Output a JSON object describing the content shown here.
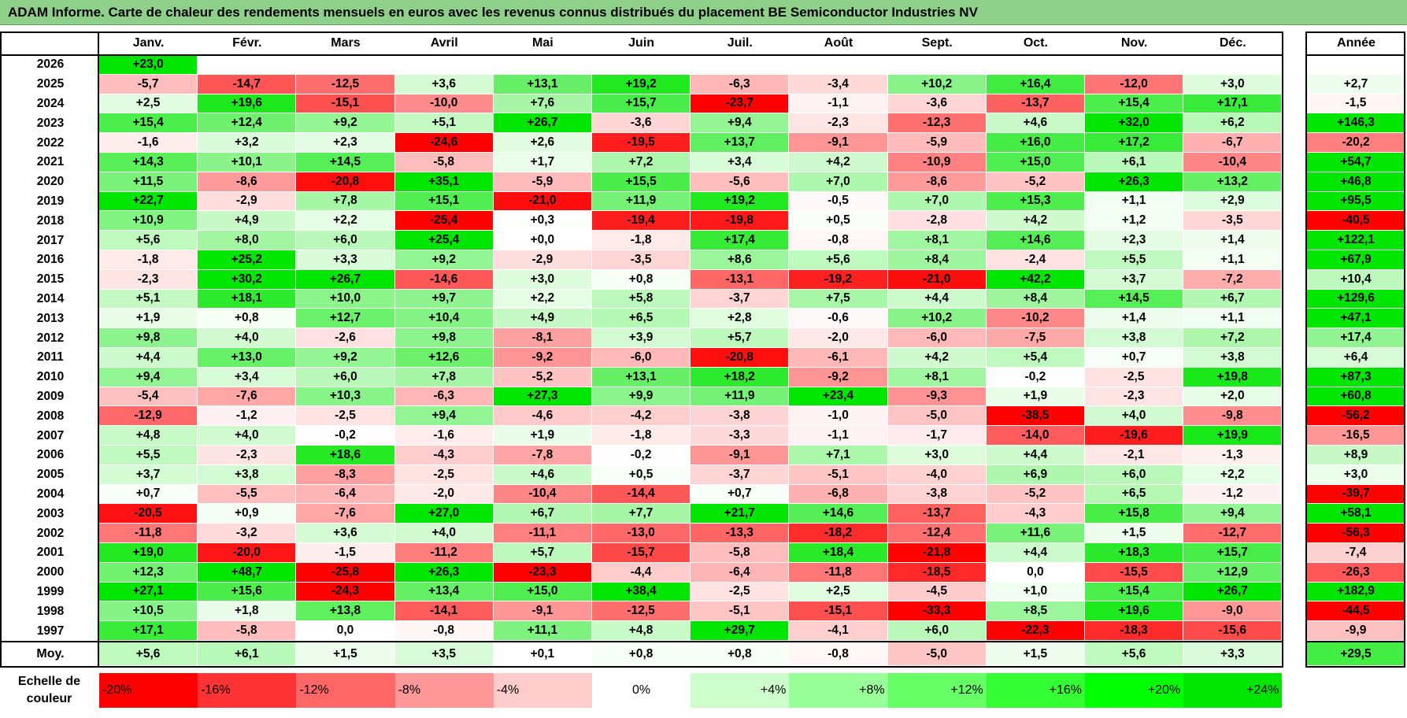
{
  "title": "ADAM Informe. Carte de chaleur des rendements mensuels en euros avec les revenus connus distribués du placement BE Semiconductor Industries NV",
  "chart_data": {
    "type": "heatmap",
    "title": "ADAM Informe. Carte de chaleur des rendements mensuels en euros avec les revenus connus distribués du placement BE Semiconductor Industries NV",
    "months": [
      "Janv.",
      "Févr.",
      "Mars",
      "Avril",
      "Mai",
      "Juin",
      "Juil.",
      "Août",
      "Sept.",
      "Oct.",
      "Nov.",
      "Déc."
    ],
    "annual_label": "Année",
    "rows": [
      {
        "year": "2026",
        "values": [
          "+23,0",
          "",
          "",
          "",
          "",
          "",
          "",
          "",
          "",
          "",
          "",
          ""
        ],
        "annual": ""
      },
      {
        "year": "2025",
        "values": [
          "-5,7",
          "-14,7",
          "-12,5",
          "+3,6",
          "+13,1",
          "+19,2",
          "-6,3",
          "-3,4",
          "+10,2",
          "+16,4",
          "-12,0",
          "+3,0"
        ],
        "annual": "+2,7"
      },
      {
        "year": "2024",
        "values": [
          "+2,5",
          "+19,6",
          "-15,1",
          "-10,0",
          "+7,6",
          "+15,7",
          "-23,7",
          "-1,1",
          "-3,6",
          "-13,7",
          "+15,4",
          "+17,1"
        ],
        "annual": "-1,5"
      },
      {
        "year": "2023",
        "values": [
          "+15,4",
          "+12,4",
          "+9,2",
          "+5,1",
          "+26,7",
          "-3,6",
          "+9,4",
          "-2,3",
          "-12,3",
          "+4,6",
          "+32,0",
          "+6,2"
        ],
        "annual": "+146,3"
      },
      {
        "year": "2022",
        "values": [
          "-1,6",
          "+3,2",
          "+2,3",
          "-24,6",
          "+2,6",
          "-19,5",
          "+13,7",
          "-9,1",
          "-5,9",
          "+16,0",
          "+17,2",
          "-6,7"
        ],
        "annual": "-20,2"
      },
      {
        "year": "2021",
        "values": [
          "+14,3",
          "+10,1",
          "+14,5",
          "-5,8",
          "+1,7",
          "+7,2",
          "+3,4",
          "+4,2",
          "-10,9",
          "+15,0",
          "+6,1",
          "-10,4"
        ],
        "annual": "+54,7"
      },
      {
        "year": "2020",
        "values": [
          "+11,5",
          "-8,6",
          "-20,8",
          "+35,1",
          "-5,9",
          "+15,5",
          "-5,6",
          "+7,0",
          "-8,6",
          "-5,2",
          "+26,3",
          "+13,2"
        ],
        "annual": "+46,8"
      },
      {
        "year": "2019",
        "values": [
          "+22,7",
          "-2,9",
          "+7,8",
          "+15,1",
          "-21,0",
          "+11,9",
          "+19,2",
          "-0,5",
          "+7,0",
          "+15,3",
          "+1,1",
          "+2,9"
        ],
        "annual": "+95,5"
      },
      {
        "year": "2018",
        "values": [
          "+10,9",
          "+4,9",
          "+2,2",
          "-25,4",
          "+0,3",
          "-19,4",
          "-19,8",
          "+0,5",
          "-2,8",
          "+4,2",
          "+1,2",
          "-3,5"
        ],
        "annual": "-40,5"
      },
      {
        "year": "2017",
        "values": [
          "+5,6",
          "+8,0",
          "+6,0",
          "+25,4",
          "+0,0",
          "-1,8",
          "+17,4",
          "-0,8",
          "+8,1",
          "+14,6",
          "+2,3",
          "+1,4"
        ],
        "annual": "+122,1"
      },
      {
        "year": "2016",
        "values": [
          "-1,8",
          "+25,2",
          "+3,3",
          "+9,2",
          "-2,9",
          "-3,5",
          "+8,6",
          "+5,6",
          "+8,4",
          "-2,4",
          "+5,5",
          "+1,1"
        ],
        "annual": "+67,9"
      },
      {
        "year": "2015",
        "values": [
          "-2,3",
          "+30,2",
          "+26,7",
          "-14,6",
          "+3,0",
          "+0,8",
          "-13,1",
          "-19,2",
          "-21,0",
          "+42,2",
          "+3,7",
          "-7,2"
        ],
        "annual": "+10,4"
      },
      {
        "year": "2014",
        "values": [
          "+5,1",
          "+18,1",
          "+10,0",
          "+9,7",
          "+2,2",
          "+5,8",
          "-3,7",
          "+7,5",
          "+4,4",
          "+8,4",
          "+14,5",
          "+6,7"
        ],
        "annual": "+129,6"
      },
      {
        "year": "2013",
        "values": [
          "+1,9",
          "+0,8",
          "+12,7",
          "+10,4",
          "+4,9",
          "+6,5",
          "+2,8",
          "-0,6",
          "+10,2",
          "-10,2",
          "+1,4",
          "+1,1"
        ],
        "annual": "+47,1"
      },
      {
        "year": "2012",
        "values": [
          "+9,8",
          "+4,0",
          "-2,6",
          "+9,8",
          "-8,1",
          "+3,9",
          "+5,7",
          "-2,0",
          "-6,0",
          "-7,5",
          "+3,8",
          "+7,2"
        ],
        "annual": "+17,4"
      },
      {
        "year": "2011",
        "values": [
          "+4,4",
          "+13,0",
          "+9,2",
          "+12,6",
          "-9,2",
          "-6,0",
          "-20,8",
          "-6,1",
          "+4,2",
          "+5,4",
          "+0,7",
          "+3,8"
        ],
        "annual": "+6,4"
      },
      {
        "year": "2010",
        "values": [
          "+9,4",
          "+3,4",
          "+6,0",
          "+7,8",
          "-5,2",
          "+13,1",
          "+18,2",
          "-9,2",
          "+8,1",
          "-0,2",
          "-2,5",
          "+19,8"
        ],
        "annual": "+87,3"
      },
      {
        "year": "2009",
        "values": [
          "-5,4",
          "-7,6",
          "+10,3",
          "-6,3",
          "+27,3",
          "+9,9",
          "+11,9",
          "+23,4",
          "-9,3",
          "+1,9",
          "-2,3",
          "+2,0"
        ],
        "annual": "+60,8"
      },
      {
        "year": "2008",
        "values": [
          "-12,9",
          "-1,2",
          "-2,5",
          "+9,4",
          "-4,6",
          "-4,2",
          "-3,8",
          "-1,0",
          "-5,0",
          "-38,5",
          "+4,0",
          "-9,8"
        ],
        "annual": "-56,2"
      },
      {
        "year": "2007",
        "values": [
          "+4,8",
          "+4,0",
          "-0,2",
          "-1,6",
          "+1,9",
          "-1,8",
          "-3,3",
          "-1,1",
          "-1,7",
          "-14,0",
          "-19,6",
          "+19,9"
        ],
        "annual": "-16,5"
      },
      {
        "year": "2006",
        "values": [
          "+5,5",
          "-2,3",
          "+18,6",
          "-4,3",
          "-7,8",
          "-0,2",
          "-9,1",
          "+7,1",
          "+3,0",
          "+4,4",
          "-2,1",
          "-1,3"
        ],
        "annual": "+8,9"
      },
      {
        "year": "2005",
        "values": [
          "+3,7",
          "+3,8",
          "-8,3",
          "-2,5",
          "+4,6",
          "+0,5",
          "-3,7",
          "-5,1",
          "-4,0",
          "+6,9",
          "+6,0",
          "+2,2"
        ],
        "annual": "+3,0"
      },
      {
        "year": "2004",
        "values": [
          "+0,7",
          "-5,5",
          "-6,4",
          "-2,0",
          "-10,4",
          "-14,4",
          "+0,7",
          "-6,8",
          "-3,8",
          "-5,2",
          "+6,5",
          "-1,2"
        ],
        "annual": "-39,7"
      },
      {
        "year": "2003",
        "values": [
          "-20,5",
          "+0,9",
          "-7,6",
          "+27,0",
          "+6,7",
          "+7,7",
          "+21,7",
          "+14,6",
          "-13,7",
          "-4,3",
          "+15,8",
          "+9,4"
        ],
        "annual": "+58,1"
      },
      {
        "year": "2002",
        "values": [
          "-11,8",
          "-3,2",
          "+3,6",
          "+4,0",
          "-11,1",
          "-13,0",
          "-13,3",
          "-18,2",
          "-12,4",
          "+11,6",
          "+1,5",
          "-12,7"
        ],
        "annual": "-56,3"
      },
      {
        "year": "2001",
        "values": [
          "+19,0",
          "-20,0",
          "-1,5",
          "-11,2",
          "+5,7",
          "-15,7",
          "-5,8",
          "+18,4",
          "-21,8",
          "+4,4",
          "+18,3",
          "+15,7"
        ],
        "annual": "-7,4"
      },
      {
        "year": "2000",
        "values": [
          "+12,3",
          "+48,7",
          "-25,8",
          "+26,3",
          "-23,3",
          "-4,4",
          "-6,4",
          "-11,8",
          "-18,5",
          "0,0",
          "-15,5",
          "+12,9"
        ],
        "annual": "-26,3"
      },
      {
        "year": "1999",
        "values": [
          "+27,1",
          "+15,6",
          "-24,3",
          "+13,4",
          "+15,0",
          "+38,4",
          "-2,5",
          "+2,5",
          "-4,5",
          "+1,0",
          "+15,4",
          "+26,7"
        ],
        "annual": "+182,9"
      },
      {
        "year": "1998",
        "values": [
          "+10,5",
          "+1,8",
          "+13,8",
          "-14,1",
          "-9,1",
          "-12,5",
          "-5,1",
          "-15,1",
          "-33,3",
          "+8,5",
          "+19,6",
          "-9,0"
        ],
        "annual": "-44,5"
      },
      {
        "year": "1997",
        "values": [
          "+17,1",
          "-5,8",
          "0,0",
          "-0,8",
          "+11,1",
          "+4,8",
          "+29,7",
          "-4,1",
          "+6,0",
          "-22,3",
          "-18,3",
          "-15,6"
        ],
        "annual": "-9,9"
      }
    ],
    "average": {
      "label": "Moy.",
      "values": [
        "+5,6",
        "+6,1",
        "+1,5",
        "+3,5",
        "+0,1",
        "+0,8",
        "+0,8",
        "-0,8",
        "-5,0",
        "+1,5",
        "+5,6",
        "+3,3"
      ],
      "annual": "+29,5"
    },
    "scale": {
      "label_line1": "Echelle de",
      "label_line2": "couleur",
      "stops": [
        {
          "label": "-20%",
          "color": "#ff0000"
        },
        {
          "label": "-16%",
          "color": "#ff3333"
        },
        {
          "label": "-12%",
          "color": "#ff6666"
        },
        {
          "label": "-8%",
          "color": "#ff9999"
        },
        {
          "label": "-4%",
          "color": "#ffcccc"
        },
        {
          "label": "0%",
          "color": "#ffffff"
        },
        {
          "label": "+4%",
          "color": "#ccffcc"
        },
        {
          "label": "+8%",
          "color": "#99ff99"
        },
        {
          "label": "+12%",
          "color": "#66ff66"
        },
        {
          "label": "+16%",
          "color": "#33ff33"
        },
        {
          "label": "+20%",
          "color": "#00ff00"
        },
        {
          "label": "+24%",
          "color": "#00e600"
        }
      ]
    }
  },
  "colors": {
    "title_bg": "#8ed08a",
    "neg_max": "#ff0000",
    "pos_max": "#00e600",
    "neutral": "#ffffff"
  }
}
